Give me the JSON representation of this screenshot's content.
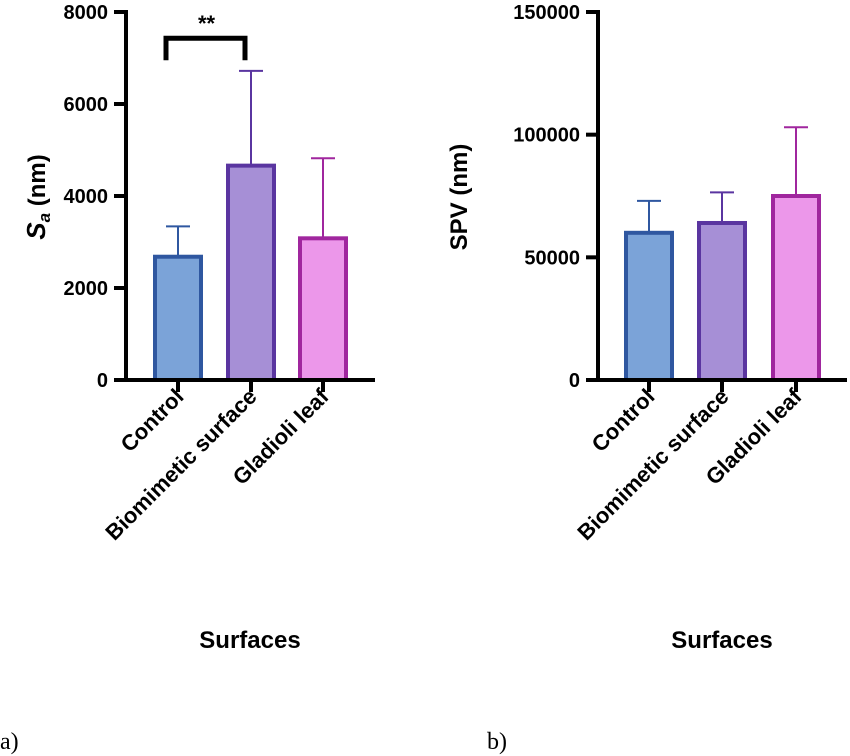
{
  "chart_data": [
    {
      "type": "bar",
      "panel_label": "a)",
      "categories": [
        "Control",
        "Biomimetic surface",
        "Gladioli leaf"
      ],
      "values": [
        2680,
        4660,
        3080
      ],
      "errors": [
        660,
        2060,
        1740
      ],
      "ylabel_main": "S",
      "ylabel_sub": "a",
      "ylabel_unit": " (nm)",
      "xlabel": "Surfaces",
      "ylim": [
        0,
        8000
      ],
      "yticks": [
        0,
        2000,
        4000,
        6000,
        8000
      ],
      "significance": {
        "from": 0,
        "to": 1,
        "label": "**",
        "y": 7430
      },
      "fill_colors": [
        "#7ba3d8",
        "#a68fd6",
        "#ec97ea"
      ],
      "edge_colors": [
        "#2f57a0",
        "#5a35a0",
        "#a0269e"
      ]
    },
    {
      "type": "bar",
      "panel_label": "b)",
      "categories": [
        "Control",
        "Biomimetic surface",
        "Gladioli leaf"
      ],
      "values": [
        60000,
        64000,
        75000
      ],
      "errors": [
        13000,
        12500,
        28000
      ],
      "ylabel": "SPV (nm)",
      "xlabel": "Surfaces",
      "ylim": [
        0,
        150000
      ],
      "yticks": [
        0,
        50000,
        100000,
        150000
      ],
      "fill_colors": [
        "#7ba3d8",
        "#a68fd6",
        "#ec97ea"
      ],
      "edge_colors": [
        "#2f57a0",
        "#5a35a0",
        "#a0269e"
      ]
    }
  ]
}
